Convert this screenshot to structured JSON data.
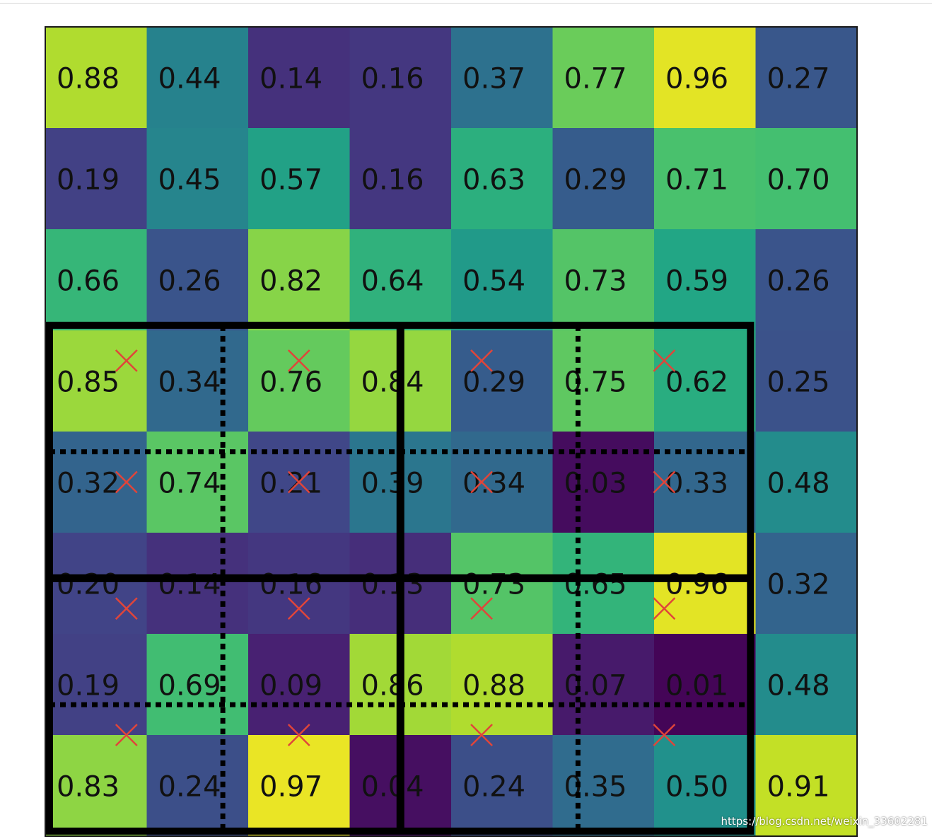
{
  "chart_data": {
    "type": "heatmap",
    "colormap": "viridis",
    "vmin": 0,
    "vmax": 1,
    "rows": 8,
    "cols": 8,
    "values": [
      [
        0.88,
        0.44,
        0.14,
        0.16,
        0.37,
        0.77,
        0.96,
        0.27
      ],
      [
        0.19,
        0.45,
        0.57,
        0.16,
        0.63,
        0.29,
        0.71,
        0.7
      ],
      [
        0.66,
        0.26,
        0.82,
        0.64,
        0.54,
        0.73,
        0.59,
        0.26
      ],
      [
        0.85,
        0.34,
        0.76,
        0.84,
        0.29,
        0.75,
        0.62,
        0.25
      ],
      [
        0.32,
        0.74,
        0.21,
        0.39,
        0.34,
        0.03,
        0.33,
        0.48
      ],
      [
        0.2,
        0.14,
        0.16,
        0.13,
        0.73,
        0.65,
        0.96,
        0.32
      ],
      [
        0.19,
        0.69,
        0.09,
        0.86,
        0.88,
        0.07,
        0.01,
        0.48
      ],
      [
        0.83,
        0.24,
        0.97,
        0.04,
        0.24,
        0.35,
        0.5,
        0.91
      ]
    ],
    "value_format": "0.00",
    "overlay": {
      "sampling_points": [
        [
          3.3,
          0.8
        ],
        [
          3.3,
          2.5
        ],
        [
          3.3,
          4.3
        ],
        [
          3.3,
          6.1
        ],
        [
          4.5,
          0.8
        ],
        [
          4.5,
          2.5
        ],
        [
          4.5,
          4.3
        ],
        [
          4.5,
          6.1
        ],
        [
          5.75,
          0.8
        ],
        [
          5.75,
          2.5
        ],
        [
          5.75,
          4.3
        ],
        [
          5.75,
          6.1
        ],
        [
          7.0,
          0.8
        ],
        [
          7.0,
          2.5
        ],
        [
          7.0,
          4.3
        ],
        [
          7.0,
          6.1
        ]
      ],
      "marker": "x",
      "marker_color": "#e0453a",
      "outer_box": {
        "row_start": 2.95,
        "row_end": 7.95,
        "col_start": 0.0,
        "col_end": 6.95
      },
      "bin_dividers_solid": {
        "rows": [
          5.45
        ],
        "cols": [
          3.5
        ]
      },
      "bin_dividers_dotted": {
        "rows": [
          4.2,
          6.7
        ],
        "cols": [
          1.75,
          5.25
        ]
      }
    }
  },
  "watermark": "https://blog.csdn.net/weixin_33602281"
}
